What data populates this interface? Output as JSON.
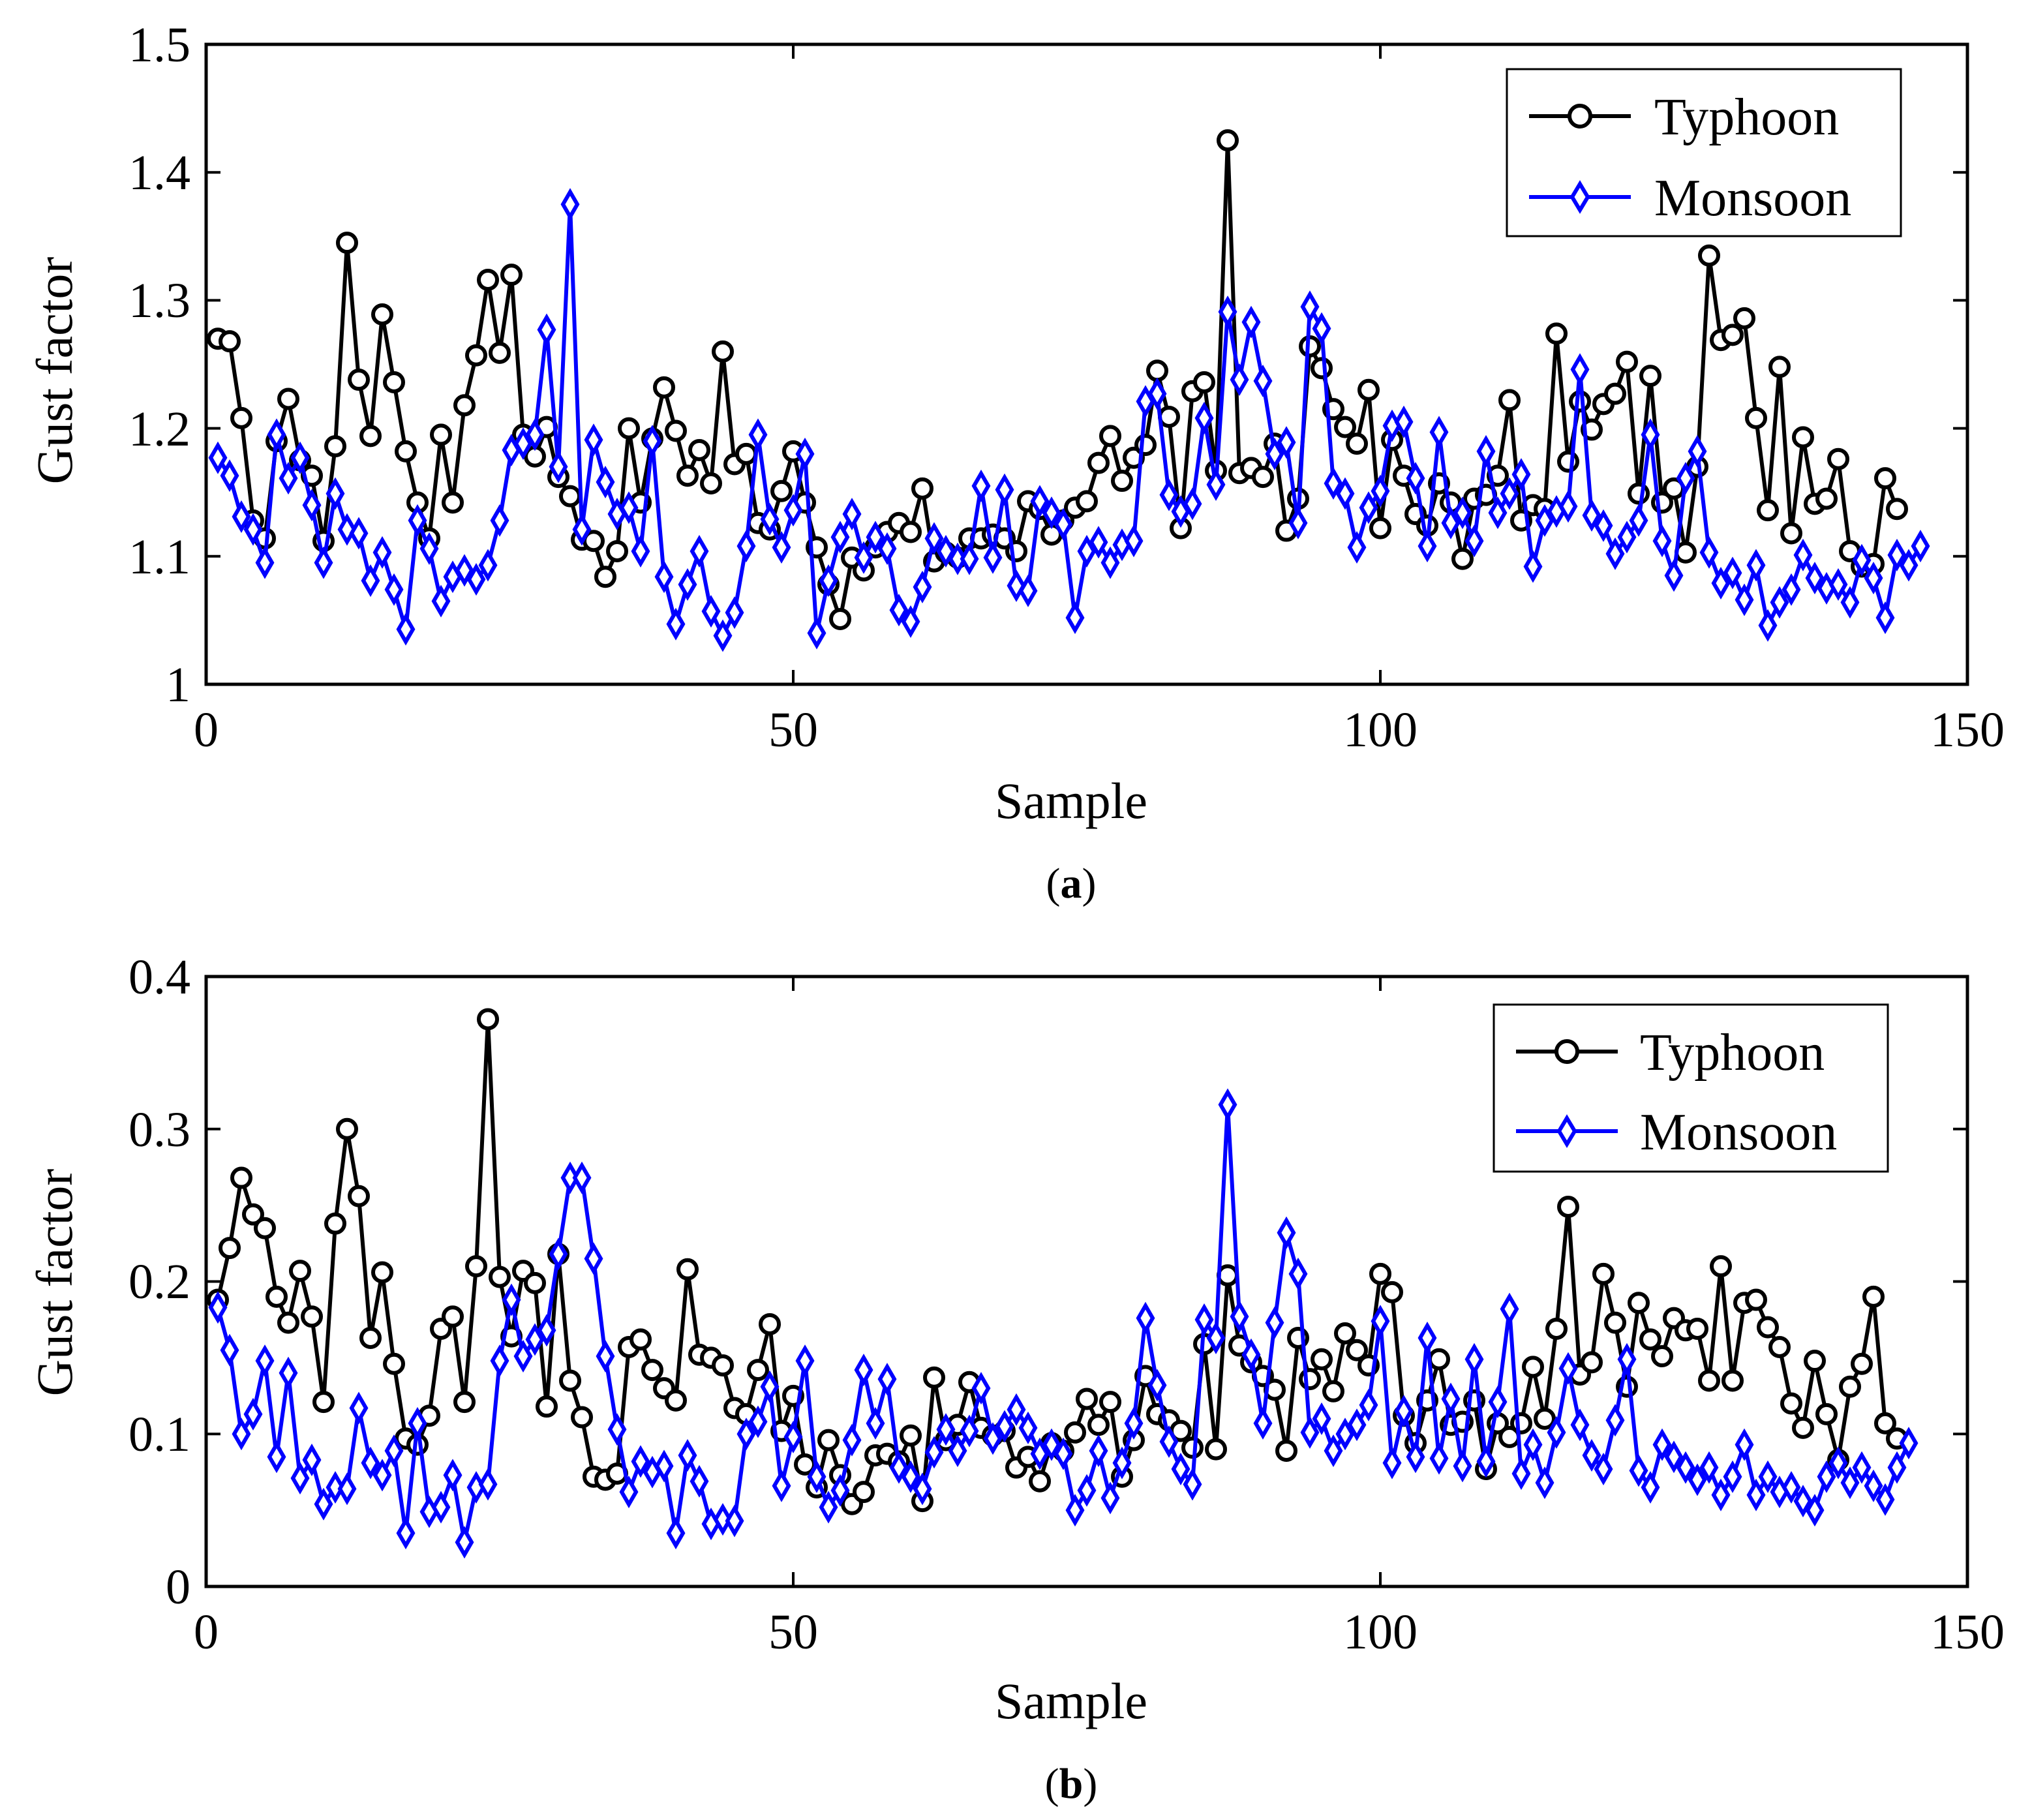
{
  "chart_data": [
    {
      "type": "line",
      "panel": "(a)",
      "caption": {
        "open": "(",
        "letter": "a",
        "close": ")"
      },
      "xlabel": "Sample",
      "ylabel": "Gust factor",
      "xlim": [
        0,
        150
      ],
      "ylim": [
        1,
        1.5
      ],
      "xticks": [
        0,
        50,
        100,
        150
      ],
      "xtick_labels": [
        "0",
        "50",
        "100",
        "150"
      ],
      "yticks": [
        1,
        1.1,
        1.2,
        1.3,
        1.4,
        1.5
      ],
      "ytick_labels": [
        "1",
        "1.1",
        "1.2",
        "1.3",
        "1.4",
        "1.5"
      ],
      "grid": false,
      "legend_position": "top-right",
      "series": [
        {
          "name": "Typhoon",
          "color": "#000000",
          "marker": "circle",
          "values": [
            1.27,
            1.268,
            1.208,
            1.128,
            1.114,
            1.19,
            1.223,
            1.175,
            1.163,
            1.112,
            1.186,
            1.345,
            1.238,
            1.194,
            1.289,
            1.236,
            1.182,
            1.142,
            1.114,
            1.195,
            1.142,
            1.218,
            1.257,
            1.316,
            1.259,
            1.32,
            1.195,
            1.178,
            1.201,
            1.162,
            1.147,
            1.113,
            1.112,
            1.084,
            1.104,
            1.2,
            1.142,
            1.192,
            1.232,
            1.198,
            1.163,
            1.183,
            1.157,
            1.26,
            1.172,
            1.18,
            1.126,
            1.121,
            1.151,
            1.182,
            1.142,
            1.107,
            1.078,
            1.051,
            1.099,
            1.089,
            1.107,
            1.119,
            1.126,
            1.119,
            1.153,
            1.096,
            1.103,
            1.099,
            1.114,
            1.114,
            1.117,
            1.114,
            1.104,
            1.143,
            1.137,
            1.117,
            1.128,
            1.138,
            1.143,
            1.173,
            1.194,
            1.159,
            1.177,
            1.187,
            1.245,
            1.209,
            1.122,
            1.229,
            1.236,
            1.167,
            1.425,
            1.165,
            1.169,
            1.162,
            1.188,
            1.12,
            1.145,
            1.264,
            1.247,
            1.215,
            1.201,
            1.188,
            1.23,
            1.122,
            1.191,
            1.163,
            1.133,
            1.124,
            1.157,
            1.142,
            1.098,
            1.145,
            1.148,
            1.163,
            1.222,
            1.128,
            1.14,
            1.137,
            1.274,
            1.174,
            1.221,
            1.199,
            1.219,
            1.227,
            1.252,
            1.149,
            1.241,
            1.142,
            1.153,
            1.103,
            1.17,
            1.335,
            1.269,
            1.273,
            1.286,
            1.208,
            1.136,
            1.248,
            1.118,
            1.193,
            1.141,
            1.145,
            1.176,
            1.104,
            1.092,
            1.094,
            1.161,
            1.137
          ]
        },
        {
          "name": "Monsoon",
          "color": "#0000ff",
          "marker": "diamond",
          "values": [
            1.177,
            1.163,
            1.131,
            1.121,
            1.095,
            1.195,
            1.161,
            1.177,
            1.14,
            1.095,
            1.149,
            1.121,
            1.118,
            1.081,
            1.103,
            1.074,
            1.043,
            1.128,
            1.106,
            1.065,
            1.084,
            1.089,
            1.082,
            1.093,
            1.128,
            1.183,
            1.188,
            1.195,
            1.277,
            1.17,
            1.375,
            1.121,
            1.191,
            1.158,
            1.133,
            1.138,
            1.104,
            1.19,
            1.084,
            1.047,
            1.078,
            1.104,
            1.057,
            1.038,
            1.056,
            1.108,
            1.195,
            1.129,
            1.107,
            1.136,
            1.18,
            1.04,
            1.081,
            1.115,
            1.133,
            1.099,
            1.115,
            1.106,
            1.058,
            1.049,
            1.076,
            1.114,
            1.104,
            1.098,
            1.098,
            1.155,
            1.099,
            1.152,
            1.077,
            1.073,
            1.143,
            1.134,
            1.125,
            1.052,
            1.104,
            1.111,
            1.095,
            1.109,
            1.112,
            1.221,
            1.227,
            1.148,
            1.135,
            1.141,
            1.208,
            1.156,
            1.291,
            1.238,
            1.283,
            1.237,
            1.18,
            1.189,
            1.126,
            1.295,
            1.278,
            1.157,
            1.149,
            1.107,
            1.138,
            1.151,
            1.202,
            1.205,
            1.161,
            1.108,
            1.197,
            1.126,
            1.134,
            1.112,
            1.182,
            1.134,
            1.149,
            1.164,
            1.092,
            1.128,
            1.135,
            1.139,
            1.246,
            1.132,
            1.124,
            1.102,
            1.115,
            1.128,
            1.195,
            1.112,
            1.085,
            1.161,
            1.182,
            1.103,
            1.079,
            1.087,
            1.066,
            1.093,
            1.046,
            1.064,
            1.074,
            1.101,
            1.083,
            1.075,
            1.078,
            1.064,
            1.097,
            1.083,
            1.052,
            1.101,
            1.093,
            1.108
          ]
        }
      ]
    },
    {
      "type": "line",
      "panel": "(b)",
      "caption": {
        "open": "(",
        "letter": "b",
        "close": ")"
      },
      "xlabel": "Sample",
      "ylabel": "Gust factor",
      "xlim": [
        0,
        150
      ],
      "ylim": [
        0,
        0.4
      ],
      "xticks": [
        0,
        50,
        100,
        150
      ],
      "xtick_labels": [
        "0",
        "50",
        "100",
        "150"
      ],
      "yticks": [
        0,
        0.1,
        0.2,
        0.3,
        0.4
      ],
      "ytick_labels": [
        "0",
        "0.1",
        "0.2",
        "0.3",
        "0.4"
      ],
      "grid": false,
      "legend_position": "top-right",
      "series": [
        {
          "name": "Typhoon",
          "color": "#000000",
          "marker": "circle",
          "values": [
            0.188,
            0.222,
            0.268,
            0.244,
            0.235,
            0.19,
            0.173,
            0.207,
            0.177,
            0.121,
            0.238,
            0.3,
            0.256,
            0.163,
            0.206,
            0.146,
            0.097,
            0.093,
            0.112,
            0.169,
            0.177,
            0.121,
            0.21,
            0.372,
            0.203,
            0.164,
            0.207,
            0.199,
            0.118,
            0.218,
            0.135,
            0.111,
            0.072,
            0.07,
            0.074,
            0.157,
            0.162,
            0.142,
            0.13,
            0.122,
            0.208,
            0.152,
            0.15,
            0.145,
            0.117,
            0.113,
            0.142,
            0.172,
            0.102,
            0.125,
            0.08,
            0.065,
            0.096,
            0.073,
            0.054,
            0.062,
            0.086,
            0.087,
            0.082,
            0.099,
            0.056,
            0.137,
            0.096,
            0.106,
            0.134,
            0.104,
            0.099,
            0.102,
            0.078,
            0.085,
            0.069,
            0.094,
            0.089,
            0.101,
            0.123,
            0.106,
            0.121,
            0.072,
            0.096,
            0.138,
            0.113,
            0.109,
            0.102,
            0.091,
            0.159,
            0.09,
            0.204,
            0.158,
            0.147,
            0.138,
            0.129,
            0.089,
            0.163,
            0.136,
            0.149,
            0.128,
            0.166,
            0.155,
            0.145,
            0.205,
            0.193,
            0.112,
            0.094,
            0.122,
            0.149,
            0.106,
            0.108,
            0.122,
            0.077,
            0.107,
            0.098,
            0.107,
            0.144,
            0.11,
            0.169,
            0.249,
            0.139,
            0.147,
            0.205,
            0.173,
            0.131,
            0.186,
            0.162,
            0.151,
            0.176,
            0.168,
            0.169,
            0.135,
            0.21,
            0.135,
            0.186,
            0.188,
            0.17,
            0.157,
            0.12,
            0.104,
            0.148,
            0.113,
            0.083,
            0.131,
            0.146,
            0.19,
            0.107,
            0.097
          ]
        },
        {
          "name": "Monsoon",
          "color": "#0000ff",
          "marker": "diamond",
          "values": [
            0.183,
            0.155,
            0.1,
            0.113,
            0.148,
            0.085,
            0.14,
            0.071,
            0.083,
            0.054,
            0.065,
            0.064,
            0.117,
            0.081,
            0.073,
            0.089,
            0.035,
            0.107,
            0.049,
            0.052,
            0.073,
            0.029,
            0.065,
            0.067,
            0.148,
            0.188,
            0.151,
            0.162,
            0.168,
            0.218,
            0.268,
            0.268,
            0.215,
            0.151,
            0.103,
            0.062,
            0.082,
            0.075,
            0.079,
            0.035,
            0.086,
            0.069,
            0.041,
            0.044,
            0.043,
            0.1,
            0.108,
            0.131,
            0.066,
            0.098,
            0.148,
            0.072,
            0.052,
            0.063,
            0.096,
            0.142,
            0.107,
            0.136,
            0.078,
            0.072,
            0.064,
            0.088,
            0.103,
            0.089,
            0.102,
            0.13,
            0.097,
            0.105,
            0.116,
            0.104,
            0.087,
            0.093,
            0.087,
            0.05,
            0.063,
            0.089,
            0.058,
            0.081,
            0.107,
            0.176,
            0.132,
            0.095,
            0.077,
            0.067,
            0.175,
            0.163,
            0.316,
            0.177,
            0.152,
            0.107,
            0.173,
            0.232,
            0.205,
            0.101,
            0.11,
            0.089,
            0.1,
            0.106,
            0.119,
            0.174,
            0.081,
            0.115,
            0.085,
            0.163,
            0.084,
            0.123,
            0.079,
            0.149,
            0.082,
            0.121,
            0.182,
            0.074,
            0.093,
            0.068,
            0.101,
            0.143,
            0.106,
            0.086,
            0.077,
            0.109,
            0.149,
            0.076,
            0.065,
            0.093,
            0.085,
            0.078,
            0.07,
            0.078,
            0.06,
            0.072,
            0.093,
            0.06,
            0.072,
            0.062,
            0.065,
            0.056,
            0.05,
            0.072,
            0.081,
            0.068,
            0.078,
            0.066,
            0.057,
            0.078,
            0.094
          ]
        }
      ]
    }
  ]
}
